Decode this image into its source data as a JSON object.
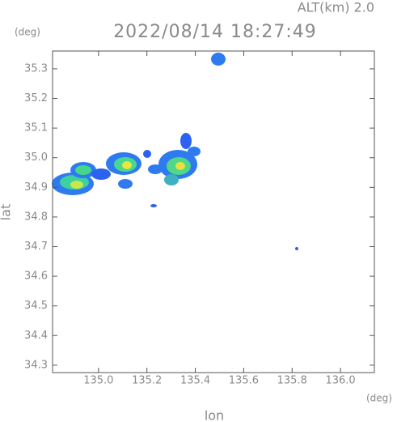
{
  "chart_data": {
    "type": "radar-map",
    "title": "2022/08/14 18:27:49",
    "altitude_label": "ALT(km) 2.0",
    "x_label": "lon",
    "y_label": "lat",
    "x_unit": "(deg)",
    "y_unit": "(deg)",
    "xlim": [
      134.81,
      136.14
    ],
    "ylim": [
      34.275,
      35.36
    ],
    "xticks": [
      {
        "value": 135,
        "label": "135.0"
      },
      135.2,
      135.4,
      135.6,
      135.8,
      {
        "value": 136,
        "label": "136.0"
      }
    ],
    "yticks": [
      34.3,
      34.4,
      34.5,
      34.6,
      34.7,
      34.8,
      34.9,
      {
        "value": 35,
        "label": "35.0"
      },
      35.1,
      35.2,
      35.3
    ]
  }
}
